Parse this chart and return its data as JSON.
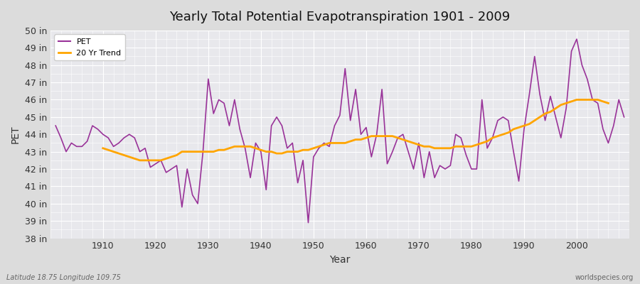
{
  "title": "Yearly Total Potential Evapotranspiration 1901 - 2009",
  "xlabel": "Year",
  "ylabel": "PET",
  "subtitle_left": "Latitude 18.75 Longitude 109.75",
  "subtitle_right": "worldspecies.org",
  "pet_color": "#993399",
  "trend_color": "#FFA500",
  "bg_color": "#e8e8e8",
  "plot_bg_color": "#e0e0e8",
  "ylim": [
    38,
    50
  ],
  "yticks": [
    38,
    39,
    40,
    41,
    42,
    43,
    44,
    45,
    46,
    47,
    48,
    49,
    50
  ],
  "years": [
    1901,
    1902,
    1903,
    1904,
    1905,
    1906,
    1907,
    1908,
    1909,
    1910,
    1911,
    1912,
    1913,
    1914,
    1915,
    1916,
    1917,
    1918,
    1919,
    1920,
    1921,
    1922,
    1923,
    1924,
    1925,
    1926,
    1927,
    1928,
    1929,
    1930,
    1931,
    1932,
    1933,
    1934,
    1935,
    1936,
    1937,
    1938,
    1939,
    1940,
    1941,
    1942,
    1943,
    1944,
    1945,
    1946,
    1947,
    1948,
    1949,
    1950,
    1951,
    1952,
    1953,
    1954,
    1955,
    1956,
    1957,
    1958,
    1959,
    1960,
    1961,
    1962,
    1963,
    1964,
    1965,
    1966,
    1967,
    1968,
    1969,
    1970,
    1971,
    1972,
    1973,
    1974,
    1975,
    1976,
    1977,
    1978,
    1979,
    1980,
    1981,
    1982,
    1983,
    1984,
    1985,
    1986,
    1987,
    1988,
    1989,
    1990,
    1991,
    1992,
    1993,
    1994,
    1995,
    1996,
    1997,
    1998,
    1999,
    2000,
    2001,
    2002,
    2003,
    2004,
    2005,
    2006,
    2007,
    2008,
    2009
  ],
  "pet_values": [
    44.5,
    43.8,
    43.0,
    43.5,
    43.3,
    43.3,
    43.6,
    44.5,
    44.3,
    44.0,
    43.8,
    43.3,
    43.5,
    43.8,
    44.0,
    43.8,
    43.0,
    43.2,
    42.1,
    42.3,
    42.5,
    41.8,
    42.0,
    42.2,
    39.8,
    42.0,
    40.5,
    40.0,
    43.0,
    47.2,
    45.2,
    46.0,
    45.8,
    44.5,
    46.0,
    44.3,
    43.2,
    41.5,
    43.5,
    43.0,
    40.8,
    44.5,
    45.0,
    44.5,
    43.2,
    43.5,
    41.2,
    42.5,
    38.9,
    42.7,
    43.2,
    43.5,
    43.3,
    44.5,
    45.1,
    47.8,
    44.8,
    46.6,
    44.0,
    44.4,
    42.7,
    44.0,
    46.6,
    42.3,
    43.0,
    43.8,
    44.0,
    43.0,
    42.0,
    43.5,
    41.5,
    43.0,
    41.5,
    42.2,
    42.0,
    42.2,
    44.0,
    43.8,
    42.8,
    42.0,
    42.0,
    46.0,
    43.2,
    43.8,
    44.8,
    45.0,
    44.8,
    43.0,
    41.3,
    44.3,
    46.3,
    48.5,
    46.3,
    44.8,
    46.2,
    45.0,
    43.8,
    45.5,
    48.8,
    49.5,
    48.0,
    47.2,
    46.0,
    45.8,
    44.3,
    43.5,
    44.5,
    46.0,
    45.0
  ],
  "trend_values": [
    null,
    null,
    null,
    null,
    null,
    null,
    null,
    null,
    null,
    43.2,
    43.1,
    43.0,
    42.9,
    42.8,
    42.7,
    42.6,
    42.5,
    42.5,
    42.5,
    42.5,
    42.5,
    42.6,
    42.7,
    42.8,
    43.0,
    43.0,
    43.0,
    43.0,
    43.0,
    43.0,
    43.0,
    43.1,
    43.1,
    43.2,
    43.3,
    43.3,
    43.3,
    43.3,
    43.2,
    43.1,
    43.0,
    43.0,
    42.9,
    42.9,
    43.0,
    43.0,
    43.0,
    43.1,
    43.1,
    43.2,
    43.3,
    43.4,
    43.5,
    43.5,
    43.5,
    43.5,
    43.6,
    43.7,
    43.7,
    43.8,
    43.9,
    43.9,
    43.9,
    43.9,
    43.9,
    43.8,
    43.7,
    43.6,
    43.5,
    43.4,
    43.3,
    43.3,
    43.2,
    43.2,
    43.2,
    43.2,
    43.3,
    43.3,
    43.3,
    43.3,
    43.4,
    43.5,
    43.6,
    43.8,
    43.9,
    44.0,
    44.1,
    44.3,
    44.4,
    44.5,
    44.6,
    44.8,
    45.0,
    45.2,
    45.3,
    45.5,
    45.7,
    45.8,
    45.9,
    46.0,
    46.0,
    46.0,
    46.0,
    46.0,
    45.9,
    45.8,
    null,
    null,
    null
  ]
}
